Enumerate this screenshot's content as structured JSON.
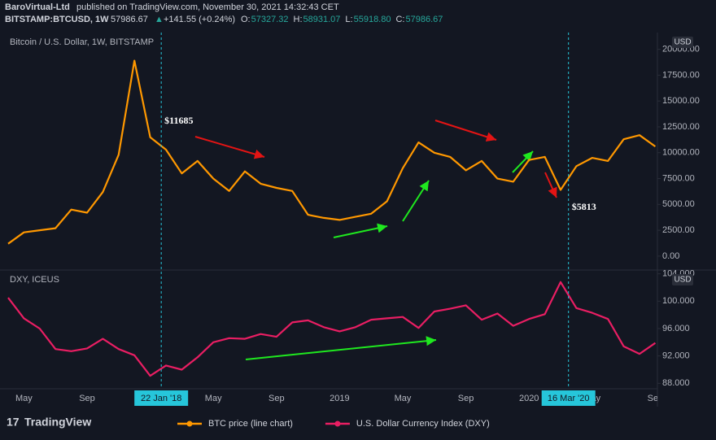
{
  "header": {
    "publisher": "BaroVirtual-Ltd",
    "published": "published on TradingView.com, November 30, 2021 14:32:43 CET",
    "symbol": "BITSTAMP:BTCUSD, 1W",
    "price": "57986.67",
    "change": "+141.55 (+0.24%)",
    "ohlc": [
      {
        "label": "O:",
        "value": "57327.32"
      },
      {
        "label": "H:",
        "value": "58931.07"
      },
      {
        "label": "L:",
        "value": "55918.80"
      },
      {
        "label": "C:",
        "value": "57986.67"
      }
    ]
  },
  "brand": "TradingView",
  "chart_data": [
    {
      "type": "line",
      "title": "Bitcoin / U.S. Dollar, 1W, BITSTAMP",
      "unit": "USD",
      "x": [
        "2017-04",
        "2017-05",
        "2017-06",
        "2017-07",
        "2017-08",
        "2017-09",
        "2017-10",
        "2017-11",
        "2017-12",
        "2018-01",
        "2018-02",
        "2018-03",
        "2018-04",
        "2018-05",
        "2018-06",
        "2018-07",
        "2018-08",
        "2018-09",
        "2018-10",
        "2018-11",
        "2018-12",
        "2019-01",
        "2019-02",
        "2019-03",
        "2019-04",
        "2019-05",
        "2019-06",
        "2019-07",
        "2019-08",
        "2019-09",
        "2019-10",
        "2019-11",
        "2019-12",
        "2020-01",
        "2020-02",
        "2020-03",
        "2020-04",
        "2020-05",
        "2020-06",
        "2020-07",
        "2020-08",
        "2020-09"
      ],
      "series": [
        {
          "name": "BTC price (line chart)",
          "color": "#ff9800",
          "values": [
            1200,
            2300,
            2500,
            2700,
            4500,
            4200,
            6200,
            9800,
            18900,
            11500,
            10300,
            8000,
            9200,
            7500,
            6300,
            8200,
            7000,
            6600,
            6300,
            4000,
            3700,
            3500,
            3800,
            4100,
            5300,
            8500,
            11000,
            10000,
            9600,
            8300,
            9200,
            7500,
            7200,
            9300,
            9600,
            6400,
            8700,
            9500,
            9200,
            11300,
            11700,
            10600
          ]
        }
      ],
      "ylim": [
        -400,
        20600
      ],
      "yticks": [
        {
          "value": 0,
          "label": "0.00"
        },
        {
          "value": 2500,
          "label": "2500.00"
        },
        {
          "value": 5000,
          "label": "5000.00"
        },
        {
          "value": 7500,
          "label": "7500.00"
        },
        {
          "value": 10000,
          "label": "10000.00"
        },
        {
          "value": 12500,
          "label": "12500.00"
        },
        {
          "value": 15000,
          "label": "15000.00"
        },
        {
          "value": 17500,
          "label": "17500.00"
        },
        {
          "value": 20000,
          "label": "20000.00"
        }
      ],
      "annotations": [
        {
          "label": "$11685",
          "value": 11685,
          "x": "2018-01-22"
        },
        {
          "label": "$5813",
          "value": 5813,
          "x": "2020-03-16"
        }
      ]
    },
    {
      "type": "line",
      "title": "DXY, ICEUS",
      "unit": "USD",
      "x": [
        "2017-04",
        "2017-05",
        "2017-06",
        "2017-07",
        "2017-08",
        "2017-09",
        "2017-10",
        "2017-11",
        "2017-12",
        "2018-01",
        "2018-02",
        "2018-03",
        "2018-04",
        "2018-05",
        "2018-06",
        "2018-07",
        "2018-08",
        "2018-09",
        "2018-10",
        "2018-11",
        "2018-12",
        "2019-01",
        "2019-02",
        "2019-03",
        "2019-04",
        "2019-05",
        "2019-06",
        "2019-07",
        "2019-08",
        "2019-09",
        "2019-10",
        "2019-11",
        "2019-12",
        "2020-01",
        "2020-02",
        "2020-03",
        "2020-04",
        "2020-05",
        "2020-06",
        "2020-07",
        "2020-08",
        "2020-09"
      ],
      "series": [
        {
          "name": "U.S. Dollar Currency Index (DXY)",
          "color": "#e91e63",
          "values": [
            100.5,
            97.5,
            96,
            93,
            92.7,
            93.1,
            94.5,
            93,
            92.1,
            89.1,
            90.6,
            90,
            91.8,
            94,
            94.6,
            94.5,
            95.2,
            94.8,
            96.9,
            97.2,
            96.2,
            95.6,
            96.2,
            97.3,
            97.5,
            97.7,
            96.1,
            98.5,
            98.9,
            99.4,
            97.3,
            98.2,
            96.4,
            97.4,
            98.1,
            102.8,
            99,
            98.3,
            97.4,
            93.4,
            92.3,
            93.9
          ]
        }
      ],
      "ylim": [
        87.8,
        104.2
      ],
      "yticks": [
        {
          "value": 88,
          "label": "88.000"
        },
        {
          "value": 92,
          "label": "92.000"
        },
        {
          "value": 96,
          "label": "96.000"
        },
        {
          "value": 100,
          "label": "100.000"
        },
        {
          "value": 104,
          "label": "104.000"
        }
      ],
      "xticks": [
        {
          "value": "2017-05",
          "label": "May"
        },
        {
          "value": "2017-09",
          "label": "Sep"
        },
        {
          "value": "2018-05",
          "label": "May"
        },
        {
          "value": "2018-09",
          "label": "Sep"
        },
        {
          "value": "2019-01",
          "label": "2019"
        },
        {
          "value": "2019-05",
          "label": "May"
        },
        {
          "value": "2019-09",
          "label": "Sep"
        },
        {
          "value": "2020-01",
          "label": "2020"
        },
        {
          "value": "2020-05",
          "label": "May"
        },
        {
          "value": "2020-09",
          "label": "Sep"
        }
      ],
      "crosshairs": [
        {
          "x": "2018-01-22",
          "label": "22 Jan '18"
        },
        {
          "x": "2020-03-16",
          "label": "16 Mar '20"
        }
      ]
    }
  ]
}
